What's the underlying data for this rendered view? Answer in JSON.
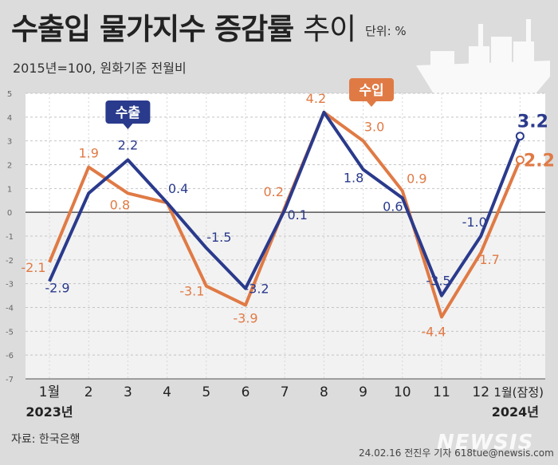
{
  "header": {
    "title_bold": "수출입 물가지수 증감률",
    "title_light": "추이",
    "unit": "단위: %",
    "subtitle": "2015년=100, 원화기준 전월비"
  },
  "footer": {
    "source": "자료: 한국은행",
    "credit": "24.02.16 전진우 기자 618tue@newsis.com",
    "logo": "NEWSIS"
  },
  "colors": {
    "export": "#2a3a8c",
    "import": "#e07a45"
  },
  "chart_data": {
    "type": "line",
    "categories": [
      "1월",
      "2",
      "3",
      "4",
      "5",
      "6",
      "7",
      "8",
      "9",
      "10",
      "11",
      "12",
      "1월(잠정)"
    ],
    "year_labels": [
      {
        "index": 0,
        "label": "2023년"
      },
      {
        "index": 12,
        "label": "2024년"
      }
    ],
    "ylim": [
      -7,
      5
    ],
    "yticks": [
      -7,
      -6,
      -5,
      -4,
      -3,
      -2,
      -1,
      0,
      1,
      2,
      3,
      4,
      5
    ],
    "series": [
      {
        "name": "수출",
        "values": [
          -2.9,
          0.8,
          2.2,
          0.4,
          -1.5,
          -3.2,
          0.1,
          4.2,
          1.8,
          0.6,
          -3.5,
          -1.0,
          3.2
        ],
        "labels": [
          "-2.9",
          "",
          "2.2",
          "0.4",
          "-1.5",
          "-3.2",
          "0.1",
          "",
          "1.8",
          "0.6",
          "-3.5",
          "-1.0",
          "3.2"
        ]
      },
      {
        "name": "수입",
        "values": [
          -2.1,
          1.9,
          0.8,
          0.4,
          -3.1,
          -3.9,
          0.2,
          4.2,
          3.0,
          0.9,
          -4.4,
          -1.7,
          2.2
        ],
        "labels": [
          "-2.1",
          "1.9",
          "0.8",
          "",
          "-3.1",
          "-3.9",
          "0.2",
          "4.2",
          "3.0",
          "0.9",
          "-4.4",
          "-1.7",
          "2.2"
        ]
      }
    ]
  }
}
